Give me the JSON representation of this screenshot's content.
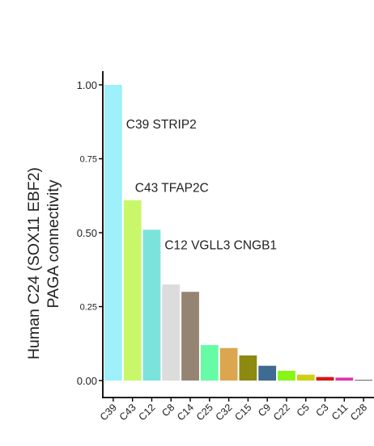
{
  "chart_data": {
    "type": "bar",
    "ylabel_line1": "Human C24 (SOX11 EBF2)",
    "ylabel_line2": "PAGA connectivity",
    "xlabel": "",
    "ylim": [
      0,
      1.0
    ],
    "yticks": [
      {
        "value": 0.0,
        "label": "0.00"
      },
      {
        "value": 0.25,
        "label": "0.25"
      },
      {
        "value": 0.5,
        "label": "0.50"
      },
      {
        "value": 0.75,
        "label": "0.75"
      },
      {
        "value": 1.0,
        "label": "1.00"
      }
    ],
    "categories": [
      "C39",
      "C43",
      "C12",
      "C8",
      "C14",
      "C25",
      "C32",
      "C15",
      "C9",
      "C22",
      "C5",
      "C3",
      "C11",
      "C28"
    ],
    "values": [
      1.0,
      0.61,
      0.51,
      0.325,
      0.3,
      0.12,
      0.11,
      0.085,
      0.05,
      0.033,
      0.02,
      0.012,
      0.01,
      0.002
    ],
    "colors": [
      "#9ef0fa",
      "#c8f76a",
      "#7ce3dc",
      "#dcdcdc",
      "#968472",
      "#66fca6",
      "#dba64f",
      "#8c8a10",
      "#3f6a91",
      "#87f516",
      "#cfcf17",
      "#d41818",
      "#e033a8",
      "#666666"
    ],
    "annotations": [
      {
        "text": "C39 STRIP2",
        "category": "C39"
      },
      {
        "text": "C43 TFAP2C",
        "category": "C43"
      },
      {
        "text": "C12 VGLL3 CNGB1",
        "category": "C12"
      }
    ],
    "grid": false,
    "legend": "none"
  }
}
